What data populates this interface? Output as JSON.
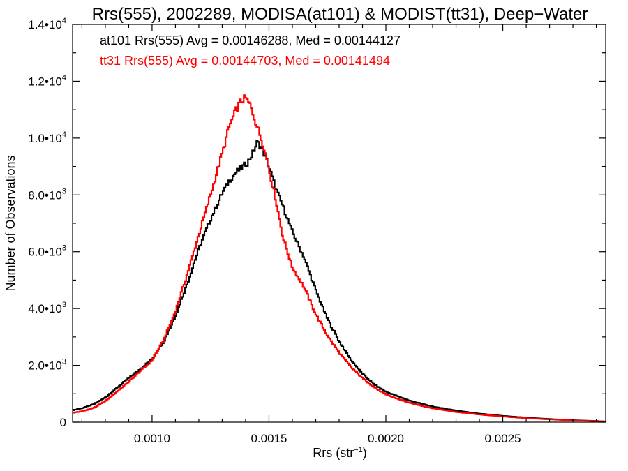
{
  "chart_data": {
    "type": "line",
    "title": "Rrs(555), 2002289, MODISA(at101) & MODIST(tt31), Deep−Water",
    "xlabel": "Rrs (str",
    "xlabel_sup": "−1",
    "xlabel_close": ")",
    "ylabel": "Number of Observations",
    "xlim": [
      0.00066,
      0.00294
    ],
    "ylim": [
      0,
      14000
    ],
    "x_ticks": [
      {
        "value": 0.001,
        "label": "0.0010"
      },
      {
        "value": 0.0015,
        "label": "0.0015"
      },
      {
        "value": 0.002,
        "label": "0.0020"
      },
      {
        "value": 0.0025,
        "label": "0.0025"
      }
    ],
    "y_ticks": [
      {
        "value": 0,
        "mant": "0",
        "exp": ""
      },
      {
        "value": 2000,
        "mant": "2.0•10",
        "exp": "3"
      },
      {
        "value": 4000,
        "mant": "4.0•10",
        "exp": "3"
      },
      {
        "value": 6000,
        "mant": "6.0•10",
        "exp": "3"
      },
      {
        "value": 8000,
        "mant": "8.0•10",
        "exp": "3"
      },
      {
        "value": 10000,
        "mant": "1.0•10",
        "exp": "4"
      },
      {
        "value": 12000,
        "mant": "1.2•10",
        "exp": "4"
      },
      {
        "value": 14000,
        "mant": "1.4•10",
        "exp": "4"
      }
    ],
    "annotations": [
      {
        "text": "at101 Rrs(555) Avg = 0.00146288, Med = 0.00144127",
        "color": "#000000"
      },
      {
        "text": "tt31 Rrs(555) Avg = 0.00144703, Med = 0.00141494",
        "color": "#ff0000"
      }
    ],
    "series": [
      {
        "color": "#000000",
        "x": [
          0.00066,
          0.0007,
          0.00075,
          0.0008,
          0.00085,
          0.0009,
          0.00095,
          0.001,
          0.00105,
          0.0011,
          0.00115,
          0.0012,
          0.00125,
          0.0013,
          0.00133,
          0.00136,
          0.00139,
          0.00141,
          0.00143,
          0.00145,
          0.00147,
          0.0015,
          0.00153,
          0.00156,
          0.0016,
          0.00165,
          0.0017,
          0.00175,
          0.0018,
          0.00185,
          0.0019,
          0.00195,
          0.002,
          0.0021,
          0.0022,
          0.0023,
          0.0024,
          0.0025,
          0.0026,
          0.0027,
          0.0028,
          0.0029,
          0.00294
        ],
        "y": [
          420,
          490,
          630,
          870,
          1210,
          1550,
          1870,
          2230,
          2840,
          3750,
          4870,
          6100,
          7150,
          8050,
          8500,
          8800,
          9000,
          9150,
          9450,
          9850,
          9650,
          9000,
          8200,
          7600,
          6700,
          5800,
          4650,
          3650,
          2850,
          2200,
          1700,
          1330,
          1070,
          760,
          550,
          410,
          300,
          220,
          160,
          110,
          70,
          40,
          20
        ]
      },
      {
        "color": "#ff0000",
        "x": [
          0.00066,
          0.0007,
          0.00075,
          0.0008,
          0.00085,
          0.0009,
          0.00095,
          0.001,
          0.00105,
          0.0011,
          0.00115,
          0.0012,
          0.00125,
          0.0013,
          0.00133,
          0.00136,
          0.00138,
          0.0014,
          0.00142,
          0.00145,
          0.00148,
          0.0015,
          0.00153,
          0.00156,
          0.0016,
          0.00165,
          0.0017,
          0.00175,
          0.0018,
          0.00185,
          0.0019,
          0.00195,
          0.002,
          0.0021,
          0.0022,
          0.0023,
          0.0024,
          0.0025,
          0.0026,
          0.0027,
          0.0028,
          0.0029,
          0.00294
        ],
        "y": [
          330,
          380,
          500,
          740,
          1080,
          1420,
          1800,
          2170,
          2900,
          3900,
          5200,
          6600,
          8000,
          9450,
          10400,
          11000,
          11300,
          11400,
          11150,
          10400,
          9650,
          8900,
          7800,
          6500,
          5450,
          4750,
          3800,
          3050,
          2450,
          1950,
          1550,
          1230,
          970,
          680,
          490,
          360,
          270,
          200,
          140,
          100,
          60,
          40,
          20
        ]
      }
    ]
  }
}
